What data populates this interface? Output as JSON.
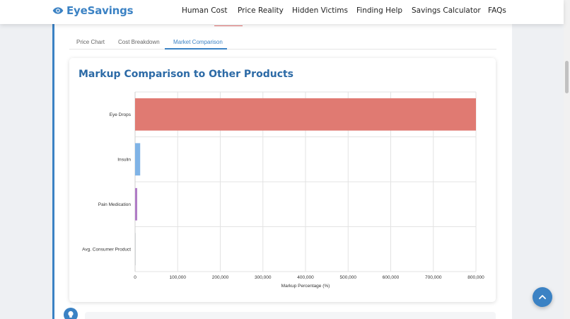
{
  "brand": {
    "name": "EyeSavings",
    "icon": "eye-icon",
    "color": "#3b82c4"
  },
  "nav": {
    "items": [
      {
        "label": "Human Cost"
      },
      {
        "label": "Price Reality"
      },
      {
        "label": "Hidden Victims"
      },
      {
        "label": "Finding Help"
      },
      {
        "label": "Savings Calculator"
      },
      {
        "label": "FAQs"
      }
    ]
  },
  "tabs": [
    {
      "label": "Price Chart",
      "active": false
    },
    {
      "label": "Cost Breakdown",
      "active": false
    },
    {
      "label": "Market Comparison",
      "active": true
    }
  ],
  "card": {
    "title": "Markup Comparison to Other Products"
  },
  "chart_data": {
    "type": "bar",
    "orientation": "horizontal",
    "categories": [
      "Eye Drops",
      "Insulin",
      "Pain Medication",
      "Avg. Consumer Product"
    ],
    "values": [
      800000,
      12000,
      5000,
      100
    ],
    "colors": [
      "#e07a72",
      "#7fb3e6",
      "#b07cc6",
      "#9aa0a6"
    ],
    "xlabel": "Markup Percentage (%)",
    "ylabel": "",
    "xlim": [
      0,
      800000
    ],
    "xticks": [
      "0",
      "100,000",
      "200,000",
      "300,000",
      "400,000",
      "500,000",
      "600,000",
      "700,000",
      "800,000"
    ],
    "grid": true
  },
  "icons": {
    "scroll_top": "chevron-up-icon",
    "tip": "lightbulb-icon"
  },
  "accent": "#3b82c4"
}
